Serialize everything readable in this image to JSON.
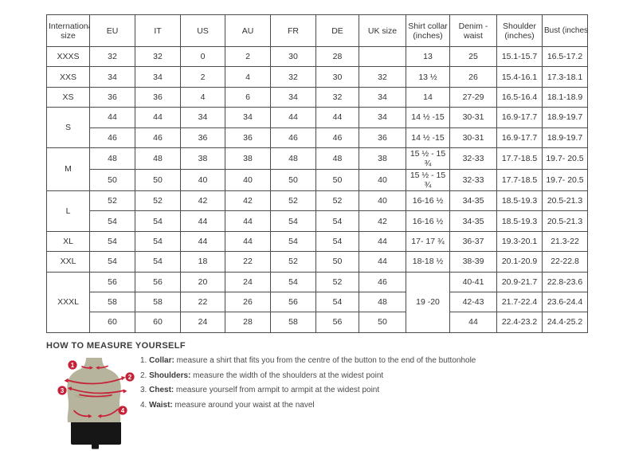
{
  "colors": {
    "accent_red": "#c62137",
    "mannequin_body": "#b7b49d",
    "shorts_black": "#161616",
    "table_border": "#4c4c4c",
    "text": "#3c3c3c"
  },
  "size_chart": {
    "headers": [
      "International size",
      "EU",
      "IT",
      "US",
      "AU",
      "FR",
      "DE",
      "UK size",
      "Shirt collar (inches)",
      "Denim - waist",
      "Shoulder (inches)",
      "Bust (inches)"
    ],
    "groups": [
      {
        "label": "XXXS",
        "rows": [
          [
            "32",
            "32",
            "0",
            "2",
            "30",
            "28",
            "",
            "13",
            "25",
            "15.1-15.7",
            "16.5-17.2"
          ]
        ]
      },
      {
        "label": "XXS",
        "rows": [
          [
            "34",
            "34",
            "2",
            "4",
            "32",
            "30",
            "32",
            "13 ½",
            "26",
            "15.4-16.1",
            "17.3-18.1"
          ]
        ]
      },
      {
        "label": "XS",
        "rows": [
          [
            "36",
            "36",
            "4",
            "6",
            "34",
            "32",
            "34",
            "14",
            "27-29",
            "16.5-16.4",
            "18.1-18.9"
          ]
        ]
      },
      {
        "label": "S",
        "rows": [
          [
            "44",
            "44",
            "34",
            "34",
            "44",
            "44",
            "34",
            "14 ½ -15",
            "30-31",
            "16.9-17.7",
            "18.9-19.7"
          ],
          [
            "46",
            "46",
            "36",
            "36",
            "46",
            "46",
            "36",
            "14 ½ -15",
            "30-31",
            "16.9-17.7",
            "18.9-19.7"
          ]
        ]
      },
      {
        "label": "M",
        "rows": [
          [
            "48",
            "48",
            "38",
            "38",
            "48",
            "48",
            "38",
            "15 ½ - 15 ¾",
            "32-33",
            "17.7-18.5",
            "19.7- 20.5"
          ],
          [
            "50",
            "50",
            "40",
            "40",
            "50",
            "50",
            "40",
            "15 ½ - 15 ¾",
            "32-33",
            "17.7-18.5",
            "19.7- 20.5"
          ]
        ]
      },
      {
        "label": "L",
        "rows": [
          [
            "52",
            "52",
            "42",
            "42",
            "52",
            "52",
            "40",
            "16-16 ½",
            "34-35",
            "18.5-19.3",
            "20.5-21.3"
          ],
          [
            "54",
            "54",
            "44",
            "44",
            "54",
            "54",
            "42",
            "16-16 ½",
            "34-35",
            "18.5-19.3",
            "20.5-21.3"
          ]
        ]
      },
      {
        "label": "XL",
        "rows": [
          [
            "54",
            "54",
            "44",
            "44",
            "54",
            "54",
            "44",
            "17- 17 ¾",
            "36-37",
            "19.3-20.1",
            "21.3-22"
          ]
        ]
      },
      {
        "label": "XXL",
        "rows": [
          [
            "54",
            "54",
            "18",
            "22",
            "52",
            "50",
            "44",
            "18-18 ½",
            "38-39",
            "20.1-20.9",
            "22-22.8"
          ]
        ]
      },
      {
        "label": "XXXL",
        "rows": [
          [
            "56",
            "56",
            "20",
            "24",
            "54",
            "52",
            "46",
            {
              "v": "19 -20",
              "rowspan": 3
            },
            "40-41",
            "20.9-21.7",
            "22.8-23.6"
          ],
          [
            "58",
            "58",
            "22",
            "26",
            "56",
            "54",
            "48",
            null,
            "42-43",
            "21.7-22.4",
            "23.6-24.4"
          ],
          [
            "60",
            "60",
            "24",
            "28",
            "58",
            "56",
            "50",
            null,
            "44",
            "22.4-23.2",
            "24.4-25.2"
          ]
        ]
      }
    ]
  },
  "how_to_measure": {
    "title": "HOW TO MEASURE YOURSELF",
    "markers": [
      "1",
      "2",
      "3",
      "4"
    ],
    "steps": [
      {
        "num": "1.",
        "label": "Collar",
        "text": "measure a shirt that fits you from the centre of the button to the end of the buttonhole"
      },
      {
        "num": "2.",
        "label": "Shoulders",
        "text": "measure the width of the shoulders at the widest point"
      },
      {
        "num": "3.",
        "label": "Chest",
        "text": "measure yourself from armpit to armpit at the widest point"
      },
      {
        "num": "4.",
        "label": "Waist",
        "text": "measure around your waist at the navel"
      }
    ]
  }
}
